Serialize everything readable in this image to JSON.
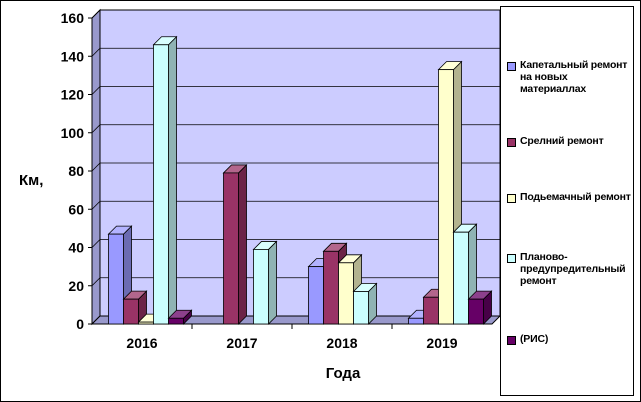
{
  "chart_data": {
    "type": "bar",
    "style": "3d-clustered-column",
    "categories": [
      "2016",
      "2017",
      "2018",
      "2019"
    ],
    "series": [
      {
        "name": "Капетальный ремонт на новых материаллах",
        "values": [
          47,
          0,
          30,
          3
        ],
        "color": "#9999ff"
      },
      {
        "name": "Срелний ремонт",
        "values": [
          13,
          79,
          38,
          14
        ],
        "color": "#993366"
      },
      {
        "name": "Подьемачный ремонт",
        "values": [
          1,
          0,
          32,
          133
        ],
        "color": "#ffffcc"
      },
      {
        "name": "Планово-предупредительный ремонт",
        "values": [
          146,
          39,
          17,
          48
        ],
        "color": "#ccffff"
      },
      {
        "name": "(РИС)",
        "values": [
          3,
          0,
          0,
          13
        ],
        "color": "#660066"
      }
    ],
    "xlabel": "Года",
    "ylabel": "Км,",
    "ylim": [
      0,
      160
    ],
    "yticks": [
      0,
      20,
      40,
      60,
      80,
      100,
      120,
      140,
      160
    ],
    "plot_background": "#ccccff",
    "grid": true,
    "legend_position": "right"
  }
}
